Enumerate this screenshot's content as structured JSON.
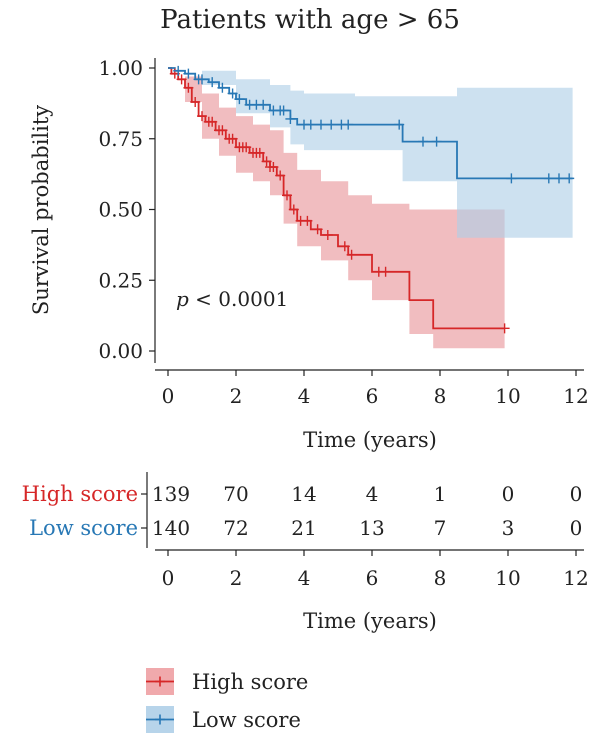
{
  "chart_data": {
    "type": "line",
    "title": "Patients with age > 65",
    "xlabel": "Time (years)",
    "ylabel": "Survival probability",
    "xlim": [
      0,
      12
    ],
    "ylim": [
      0,
      1
    ],
    "x_ticks": [
      "0",
      "2",
      "4",
      "6",
      "8",
      "10",
      "12"
    ],
    "y_ticks": [
      "0.00",
      "0.25",
      "0.50",
      "0.75",
      "1.00"
    ],
    "annotation_p": "p",
    "annotation_rest": " < 0.0001",
    "legend_position": "bottom",
    "series": [
      {
        "name": "High score",
        "color": "#d62728",
        "band_color": "#e8959a",
        "steps": [
          [
            0,
            1.0
          ],
          [
            0.1,
            0.98
          ],
          [
            0.3,
            0.96
          ],
          [
            0.5,
            0.93
          ],
          [
            0.7,
            0.88
          ],
          [
            0.9,
            0.83
          ],
          [
            1.1,
            0.81
          ],
          [
            1.4,
            0.78
          ],
          [
            1.7,
            0.75
          ],
          [
            2.0,
            0.72
          ],
          [
            2.4,
            0.7
          ],
          [
            2.8,
            0.67
          ],
          [
            3.0,
            0.65
          ],
          [
            3.2,
            0.62
          ],
          [
            3.4,
            0.55
          ],
          [
            3.6,
            0.5
          ],
          [
            3.8,
            0.46
          ],
          [
            4.2,
            0.43
          ],
          [
            4.5,
            0.41
          ],
          [
            5.0,
            0.37
          ],
          [
            5.3,
            0.34
          ],
          [
            6.0,
            0.28
          ],
          [
            7.1,
            0.18
          ],
          [
            7.8,
            0.08
          ],
          [
            9.9,
            0.08
          ]
        ],
        "upper": [
          [
            0,
            1.0
          ],
          [
            0.5,
            0.97
          ],
          [
            1.0,
            0.91
          ],
          [
            1.5,
            0.86
          ],
          [
            2.0,
            0.83
          ],
          [
            2.5,
            0.8
          ],
          [
            3.0,
            0.78
          ],
          [
            3.4,
            0.7
          ],
          [
            3.8,
            0.64
          ],
          [
            4.5,
            0.6
          ],
          [
            5.3,
            0.55
          ],
          [
            6.0,
            0.52
          ],
          [
            7.1,
            0.5
          ],
          [
            7.8,
            0.5
          ],
          [
            9.9,
            0.52
          ]
        ],
        "lower": [
          [
            0,
            1.0
          ],
          [
            0.5,
            0.88
          ],
          [
            1.0,
            0.75
          ],
          [
            1.5,
            0.69
          ],
          [
            2.0,
            0.63
          ],
          [
            2.5,
            0.6
          ],
          [
            3.0,
            0.55
          ],
          [
            3.4,
            0.45
          ],
          [
            3.8,
            0.37
          ],
          [
            4.5,
            0.32
          ],
          [
            5.3,
            0.25
          ],
          [
            6.0,
            0.18
          ],
          [
            7.1,
            0.06
          ],
          [
            7.8,
            0.01
          ],
          [
            9.9,
            0.01
          ]
        ],
        "censor_x": [
          0.2,
          0.4,
          0.6,
          0.8,
          1.0,
          1.2,
          1.3,
          1.5,
          1.6,
          1.8,
          1.9,
          2.1,
          2.2,
          2.3,
          2.5,
          2.6,
          2.7,
          2.9,
          3.0,
          3.1,
          3.3,
          3.5,
          3.7,
          3.9,
          4.1,
          4.4,
          4.7,
          5.2,
          5.4,
          6.2,
          6.4,
          9.9
        ]
      },
      {
        "name": "Low score",
        "color": "#2878b5",
        "band_color": "#aecfe6",
        "steps": [
          [
            0,
            1.0
          ],
          [
            0.2,
            0.99
          ],
          [
            0.5,
            0.98
          ],
          [
            0.8,
            0.96
          ],
          [
            1.2,
            0.95
          ],
          [
            1.5,
            0.93
          ],
          [
            1.8,
            0.91
          ],
          [
            2.0,
            0.89
          ],
          [
            2.3,
            0.87
          ],
          [
            3.0,
            0.85
          ],
          [
            3.6,
            0.82
          ],
          [
            3.8,
            0.8
          ],
          [
            5.5,
            0.8
          ],
          [
            6.9,
            0.74
          ],
          [
            8.5,
            0.61
          ],
          [
            11.9,
            0.61
          ]
        ],
        "upper": [
          [
            0,
            1.0
          ],
          [
            1.0,
            0.99
          ],
          [
            2.0,
            0.96
          ],
          [
            3.0,
            0.94
          ],
          [
            3.6,
            0.92
          ],
          [
            4.0,
            0.91
          ],
          [
            5.5,
            0.9
          ],
          [
            6.9,
            0.9
          ],
          [
            8.5,
            0.93
          ],
          [
            11.9,
            0.93
          ]
        ],
        "lower": [
          [
            0,
            1.0
          ],
          [
            1.0,
            0.94
          ],
          [
            2.0,
            0.84
          ],
          [
            3.0,
            0.79
          ],
          [
            3.6,
            0.73
          ],
          [
            4.0,
            0.71
          ],
          [
            5.5,
            0.71
          ],
          [
            6.9,
            0.6
          ],
          [
            8.5,
            0.4
          ],
          [
            11.9,
            0.4
          ]
        ],
        "censor_x": [
          0.3,
          0.6,
          0.9,
          1.0,
          1.3,
          1.6,
          1.9,
          2.1,
          2.4,
          2.6,
          2.8,
          3.1,
          3.3,
          3.4,
          3.6,
          4.0,
          4.2,
          4.5,
          4.8,
          5.1,
          5.3,
          6.8,
          7.5,
          7.9,
          10.1,
          11.2,
          11.5,
          11.8
        ]
      }
    ],
    "risk_table": {
      "xlabel": "Time (years)",
      "times": [
        0,
        2,
        4,
        6,
        8,
        10,
        12
      ],
      "x_ticks": [
        "0",
        "2",
        "4",
        "6",
        "8",
        "10",
        "12"
      ],
      "rows": [
        {
          "label": "High score",
          "color": "#d62728",
          "values": [
            "139",
            "70",
            "14",
            "4",
            "1",
            "0",
            "0"
          ]
        },
        {
          "label": "Low score",
          "color": "#2878b5",
          "values": [
            "140",
            "72",
            "21",
            "13",
            "7",
            "3",
            "0"
          ]
        }
      ]
    },
    "legend": [
      {
        "label": "High score",
        "color": "#d62728",
        "fill": "#f0a9ac"
      },
      {
        "label": "Low score",
        "color": "#2878b5",
        "fill": "#b7d4ea"
      }
    ]
  }
}
